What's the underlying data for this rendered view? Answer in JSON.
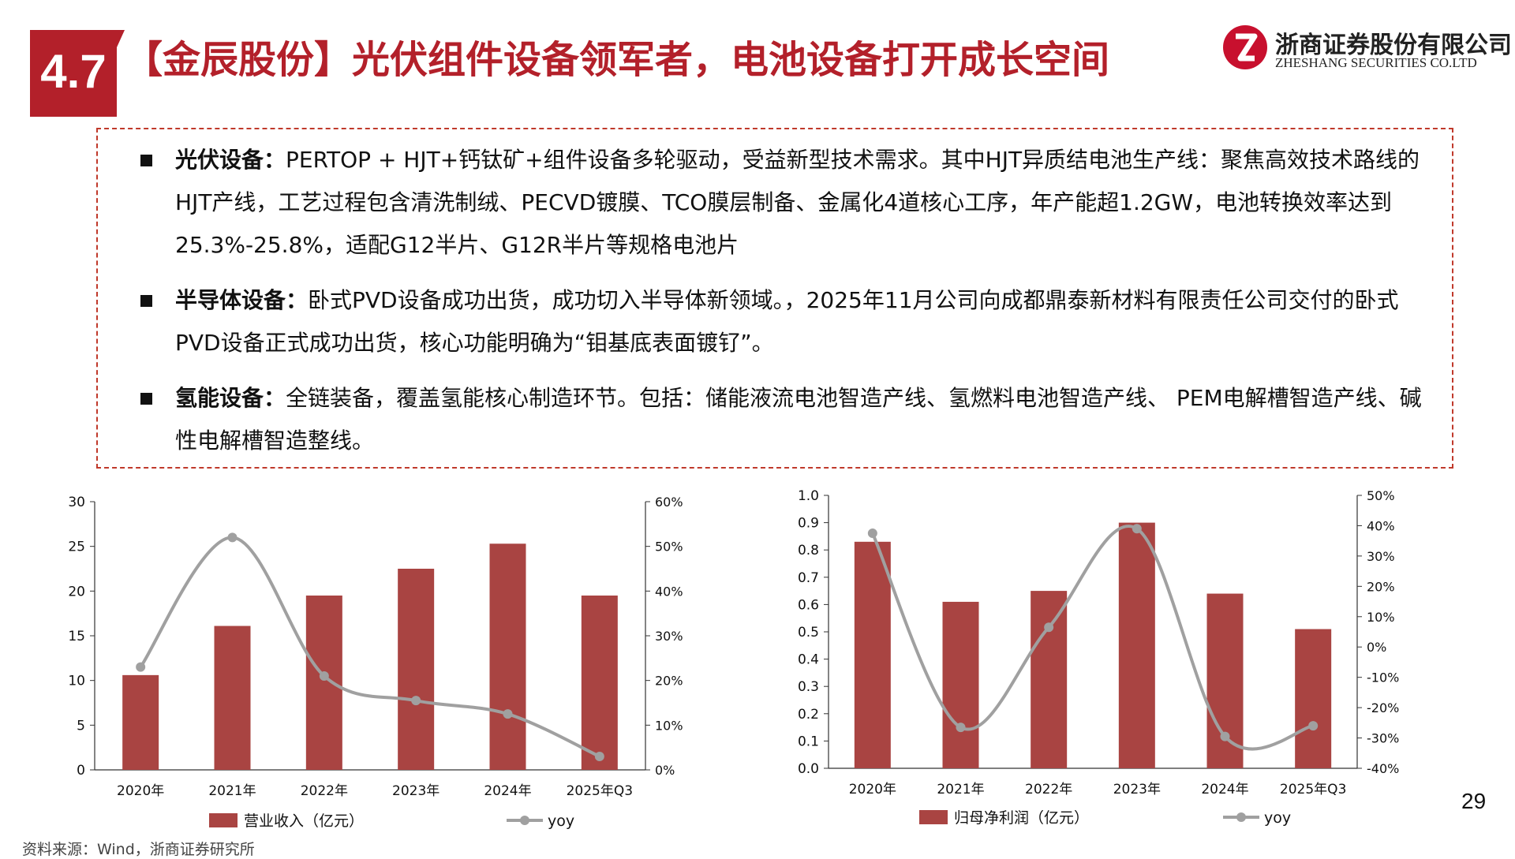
{
  "header": {
    "section_number": "4.7",
    "title": "【金辰股份】光伏组件设备领军者，电池设备打开成长空间",
    "logo_cn": "浙商证券股份有限公司",
    "logo_en": "ZHESHANG SECURITIES CO.LTD"
  },
  "bullets": [
    {
      "label": "光伏设备：",
      "text": "PERTOP + HJT+钙钛矿+组件设备多轮驱动，受益新型技术需求。其中HJT异质结电池生产线：聚焦高效技术路线的HJT产线，工艺过程包含清洗制绒、PECVD镀膜、TCO膜层制备、金属化4道核心工序，年产能超1.2GW，电池转换效率达到25.3%-25.8%，适配G12半片、G12R半片等规格电池片"
    },
    {
      "label": "半导体设备：",
      "text": "卧式PVD设备成功出货，成功切入半导体新领域。，2025年11月公司向成都鼎泰新材料有限责任公司交付的卧式PVD设备正式成功出货，核心功能明确为“钼基底表面镀钌”。"
    },
    {
      "label": "氢能设备：",
      "text": "全链装备，覆盖氢能核心制造环节。包括：储能液流电池智造产线、氢燃料电池智造产线、 PEM电解槽智造产线、碱性电解槽智造整线。"
    }
  ],
  "page_number": "29",
  "source": "资料来源：Wind，浙商证券研究所",
  "colors": {
    "bar": "#a94442",
    "line": "#a0a0a0",
    "accent": "#b3202a"
  },
  "chart_data": [
    {
      "type": "bar",
      "categories": [
        "2020年",
        "2021年",
        "2022年",
        "2023年",
        "2024年",
        "2025年Q3"
      ],
      "series": [
        {
          "name": "营业收入（亿元）",
          "type": "bar",
          "axis": "left",
          "values": [
            10.6,
            16.1,
            19.5,
            22.5,
            25.3,
            19.5
          ]
        },
        {
          "name": "yoy",
          "type": "line",
          "axis": "right",
          "values": [
            0.23,
            0.52,
            0.21,
            0.155,
            0.125,
            0.03
          ]
        }
      ],
      "y_left": {
        "min": 0,
        "max": 30,
        "ticks": [
          "0",
          "5",
          "10",
          "15",
          "20",
          "25",
          "30"
        ]
      },
      "y_right": {
        "min": 0,
        "max": 0.6,
        "ticks": [
          "0%",
          "10%",
          "20%",
          "30%",
          "40%",
          "50%",
          "60%"
        ]
      },
      "legend": "bottom",
      "grid": false
    },
    {
      "type": "bar",
      "categories": [
        "2020年",
        "2021年",
        "2022年",
        "2023年",
        "2024年",
        "2025年Q3"
      ],
      "series": [
        {
          "name": "归母净利润（亿元）",
          "type": "bar",
          "axis": "left",
          "values": [
            0.83,
            0.61,
            0.65,
            0.9,
            0.64,
            0.51
          ]
        },
        {
          "name": "yoy",
          "type": "line",
          "axis": "right",
          "values": [
            0.375,
            -0.265,
            0.065,
            0.39,
            -0.295,
            -0.26
          ]
        }
      ],
      "y_left": {
        "min": 0,
        "max": 1.0,
        "ticks": [
          "0.0",
          "0.1",
          "0.2",
          "0.3",
          "0.4",
          "0.5",
          "0.6",
          "0.7",
          "0.8",
          "0.9",
          "1.0"
        ]
      },
      "y_right": {
        "min": -0.4,
        "max": 0.5,
        "ticks": [
          "-40%",
          "-30%",
          "-20%",
          "-10%",
          "0%",
          "10%",
          "20%",
          "30%",
          "40%",
          "50%"
        ]
      },
      "legend": "bottom",
      "grid": false
    }
  ]
}
